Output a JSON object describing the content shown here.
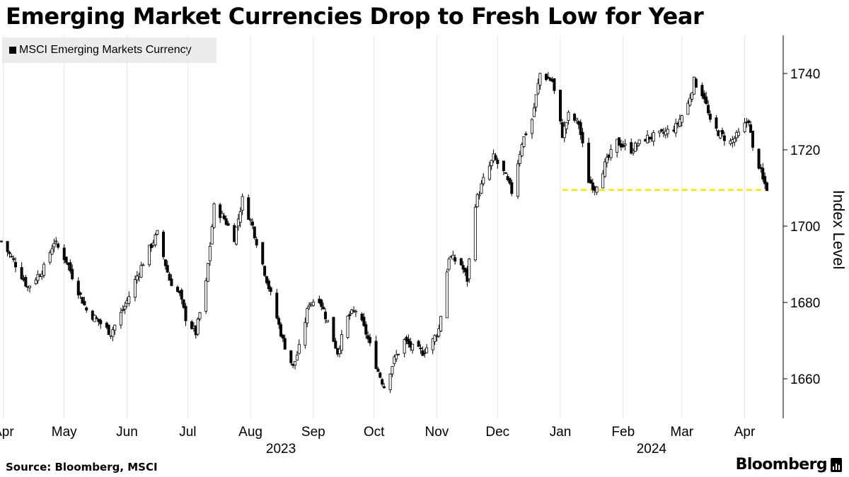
{
  "header": {
    "title": "Emerging Market Currencies Drop to Fresh Low for Year"
  },
  "legend": {
    "label": "MSCI Emerging Markets Currency",
    "swatch_color": "#000000"
  },
  "footer": {
    "source": "Source: Bloomberg, MSCI",
    "brand": "Bloomberg",
    "brand_icon": "bloomberg-terminal-icon"
  },
  "colors": {
    "candle": "#000000",
    "grid": "#e6e6e6",
    "marker_line": "#f2e600"
  },
  "chart_data": {
    "type": "candlestick",
    "title": "Emerging Market Currencies Drop to Fresh Low for Year",
    "ylabel": "Index Level",
    "xlabel": "",
    "ylim": [
      1650,
      1750
    ],
    "yticks": [
      1660,
      1680,
      1700,
      1720,
      1740
    ],
    "xlim": [
      "2023-03-31",
      "2024-04-12"
    ],
    "xticks": [
      {
        "date": "2023-04-01",
        "label": "Apr"
      },
      {
        "date": "2023-05-01",
        "label": "May"
      },
      {
        "date": "2023-06-01",
        "label": "Jun"
      },
      {
        "date": "2023-07-01",
        "label": "Jul"
      },
      {
        "date": "2023-08-01",
        "label": "Aug"
      },
      {
        "date": "2023-09-01",
        "label": "Sep"
      },
      {
        "date": "2023-10-01",
        "label": "Oct"
      },
      {
        "date": "2023-11-01",
        "label": "Nov"
      },
      {
        "date": "2023-12-01",
        "label": "Dec"
      },
      {
        "date": "2024-01-01",
        "label": "Jan"
      },
      {
        "date": "2024-02-01",
        "label": "Feb"
      },
      {
        "date": "2024-03-01",
        "label": "Mar"
      },
      {
        "date": "2024-04-01",
        "label": "Apr"
      }
    ],
    "year_labels": [
      {
        "date": "2023-08-16",
        "label": "2023"
      },
      {
        "date": "2024-02-15",
        "label": "2024"
      }
    ],
    "grid": {
      "vertical": true,
      "horizontal": false
    },
    "legend_position": "top-left",
    "reference_line": {
      "value": 1709.5,
      "from": "2024-01-02",
      "to": "2024-04-12",
      "style": "dashed"
    },
    "close_keypoints": [
      [
        "2023-03-31",
        1696
      ],
      [
        "2023-04-07",
        1690
      ],
      [
        "2023-04-13",
        1684
      ],
      [
        "2023-04-21",
        1689
      ],
      [
        "2023-04-26",
        1696
      ],
      [
        "2023-05-02",
        1691
      ],
      [
        "2023-05-08",
        1683
      ],
      [
        "2023-05-12",
        1678
      ],
      [
        "2023-05-18",
        1675
      ],
      [
        "2023-05-24",
        1672
      ],
      [
        "2023-05-31",
        1679
      ],
      [
        "2023-06-06",
        1687
      ],
      [
        "2023-06-12",
        1694
      ],
      [
        "2023-06-16",
        1698
      ],
      [
        "2023-06-22",
        1686
      ],
      [
        "2023-06-27",
        1682
      ],
      [
        "2023-06-30",
        1676
      ],
      [
        "2023-07-05",
        1672
      ],
      [
        "2023-07-10",
        1685
      ],
      [
        "2023-07-14",
        1705
      ],
      [
        "2023-07-19",
        1702
      ],
      [
        "2023-07-24",
        1697
      ],
      [
        "2023-07-28",
        1707
      ],
      [
        "2023-08-02",
        1700
      ],
      [
        "2023-08-07",
        1690
      ],
      [
        "2023-08-11",
        1682
      ],
      [
        "2023-08-17",
        1670
      ],
      [
        "2023-08-22",
        1663
      ],
      [
        "2023-08-25",
        1668
      ],
      [
        "2023-08-30",
        1680
      ],
      [
        "2023-09-04",
        1681
      ],
      [
        "2023-09-08",
        1675
      ],
      [
        "2023-09-13",
        1667
      ],
      [
        "2023-09-18",
        1676
      ],
      [
        "2023-09-22",
        1678
      ],
      [
        "2023-09-27",
        1672
      ],
      [
        "2023-10-03",
        1662
      ],
      [
        "2023-10-06",
        1658
      ],
      [
        "2023-10-11",
        1665
      ],
      [
        "2023-10-16",
        1670
      ],
      [
        "2023-10-20",
        1668
      ],
      [
        "2023-10-25",
        1667
      ],
      [
        "2023-10-30",
        1670
      ],
      [
        "2023-11-02",
        1673
      ],
      [
        "2023-11-07",
        1692
      ],
      [
        "2023-11-13",
        1690
      ],
      [
        "2023-11-16",
        1686
      ],
      [
        "2023-11-20",
        1706
      ],
      [
        "2023-11-24",
        1712
      ],
      [
        "2023-11-29",
        1718
      ],
      [
        "2023-12-04",
        1714
      ],
      [
        "2023-12-08",
        1709
      ],
      [
        "2023-12-13",
        1722
      ],
      [
        "2023-12-18",
        1728
      ],
      [
        "2023-12-22",
        1740
      ],
      [
        "2023-12-28",
        1738
      ],
      [
        "2024-01-02",
        1724
      ],
      [
        "2024-01-05",
        1729
      ],
      [
        "2024-01-10",
        1727
      ],
      [
        "2024-01-15",
        1712
      ],
      [
        "2024-01-18",
        1710
      ],
      [
        "2024-01-23",
        1716
      ],
      [
        "2024-01-29",
        1722
      ],
      [
        "2024-02-05",
        1720
      ],
      [
        "2024-02-12",
        1723
      ],
      [
        "2024-02-20",
        1724
      ],
      [
        "2024-02-27",
        1726
      ],
      [
        "2024-03-04",
        1732
      ],
      [
        "2024-03-07",
        1738
      ],
      [
        "2024-03-12",
        1734
      ],
      [
        "2024-03-15",
        1727
      ],
      [
        "2024-03-20",
        1724
      ],
      [
        "2024-03-25",
        1722
      ],
      [
        "2024-03-29",
        1724
      ],
      [
        "2024-04-03",
        1728
      ],
      [
        "2024-04-05",
        1720
      ],
      [
        "2024-04-08",
        1716
      ],
      [
        "2024-04-10",
        1712
      ],
      [
        "2024-04-12",
        1710
      ]
    ]
  }
}
